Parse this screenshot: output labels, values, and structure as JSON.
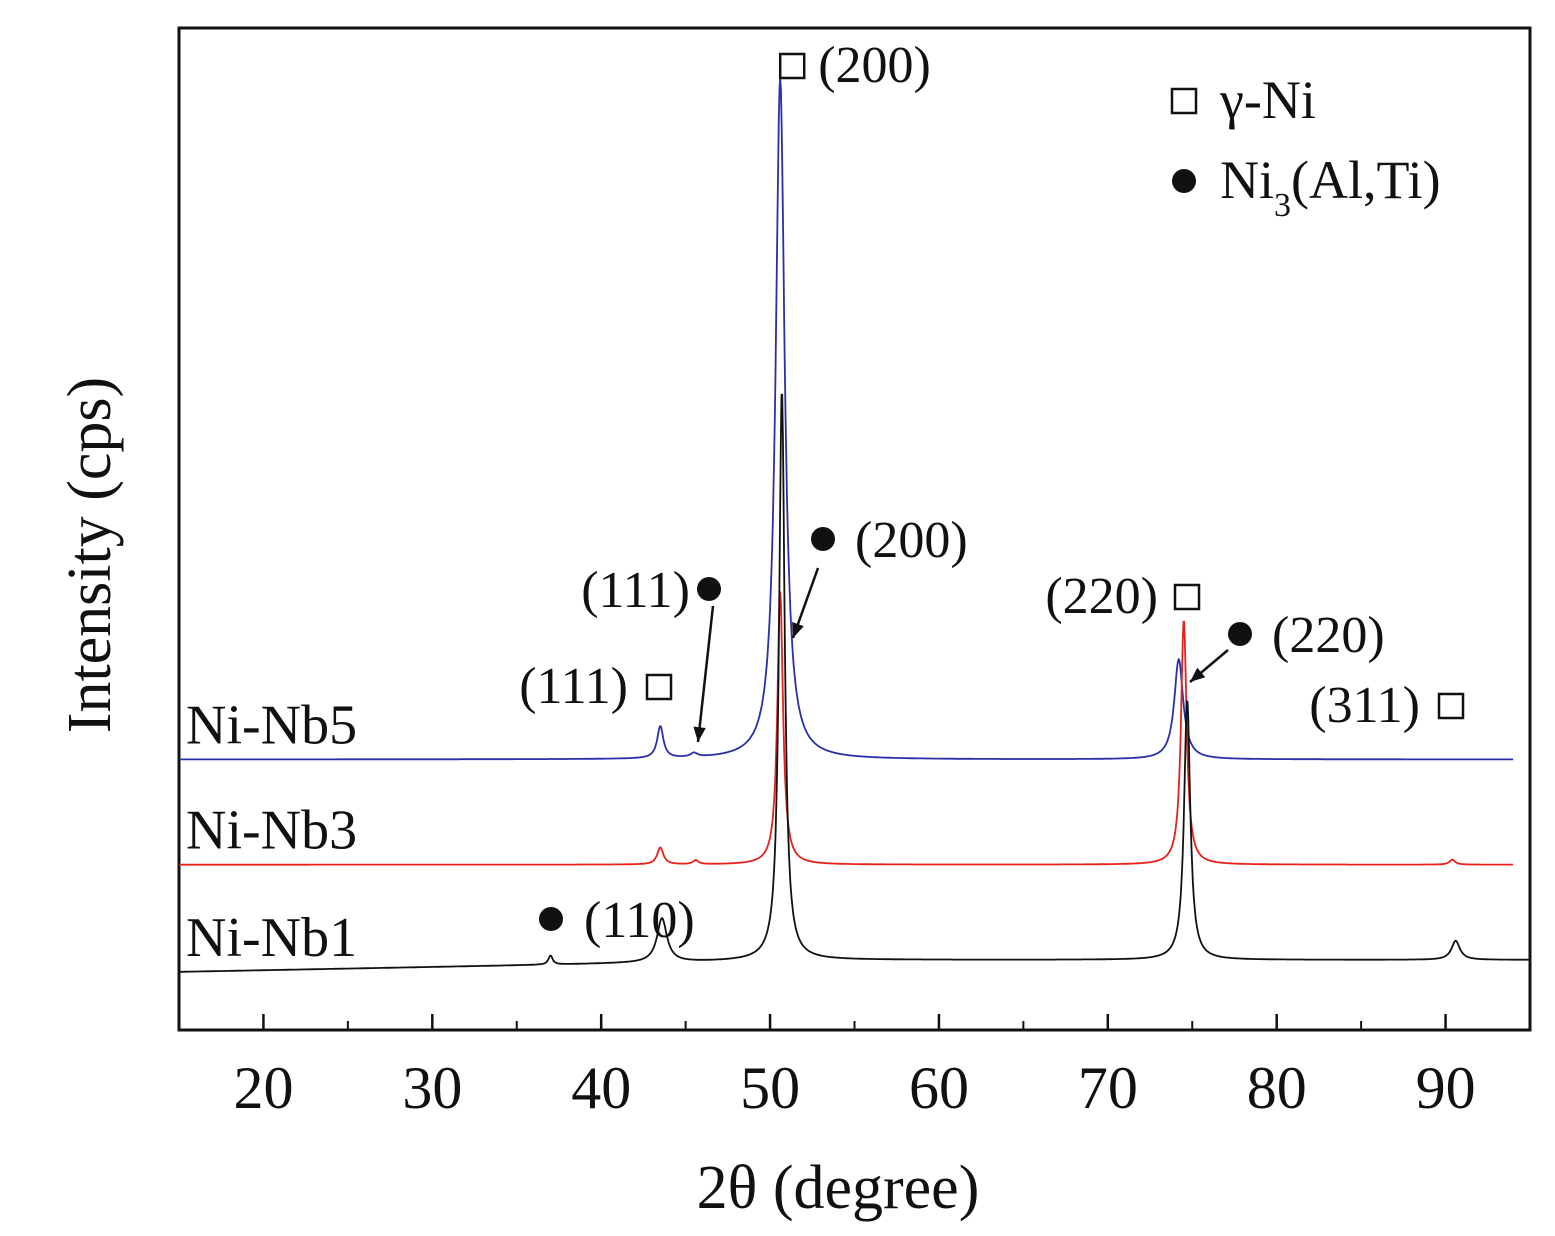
{
  "chart_data": {
    "type": "line",
    "title": "",
    "xlabel": "2θ (degree)",
    "ylabel": "Intensity (cps)",
    "xlim": [
      15,
      95
    ],
    "ylim": [
      0,
      100
    ],
    "x_ticks": [
      20,
      30,
      40,
      50,
      60,
      70,
      80,
      90
    ],
    "y_ticks_shown": false,
    "grid": false,
    "legend_position": "top-right",
    "legend": [
      {
        "symbol": "open-square",
        "label": "γ-Ni"
      },
      {
        "symbol": "filled-circle",
        "label_main": "Ni",
        "label_sub": "3",
        "label_tail": "(Al,Ti)"
      }
    ],
    "series": [
      {
        "name": "Ni-Nb5",
        "color": "#2b2fa8",
        "x_range": [
          15,
          94
        ],
        "baseline": 27,
        "peaks": [
          {
            "x": 43.5,
            "height": 3.2,
            "width": 0.22
          },
          {
            "x": 45.5,
            "height": 0.4,
            "width": 0.25
          },
          {
            "x": 50.6,
            "height": 68.0,
            "width": 0.32
          },
          {
            "x": 74.2,
            "height": 10.0,
            "width": 0.32
          }
        ]
      },
      {
        "name": "Ni-Nb3",
        "color": "#e8211b",
        "x_range": [
          15,
          94
        ],
        "baseline": 16.5,
        "peaks": [
          {
            "x": 43.5,
            "height": 1.7,
            "width": 0.22
          },
          {
            "x": 45.6,
            "height": 0.4,
            "width": 0.2
          },
          {
            "x": 50.6,
            "height": 27.2,
            "width": 0.2
          },
          {
            "x": 74.5,
            "height": 24.5,
            "width": 0.2
          },
          {
            "x": 90.4,
            "height": 0.5,
            "width": 0.2
          }
        ]
      },
      {
        "name": "Ni-Nb1",
        "color": "#111111",
        "x_range": [
          15,
          95
        ],
        "baseline_start": 5.8,
        "baseline_end": 7.0,
        "peaks": [
          {
            "x": 37.0,
            "height": 0.9,
            "width": 0.15
          },
          {
            "x": 43.6,
            "height": 4.4,
            "width": 0.35
          },
          {
            "x": 50.7,
            "height": 57.0,
            "width": 0.2
          },
          {
            "x": 74.7,
            "height": 26.0,
            "width": 0.22
          },
          {
            "x": 90.6,
            "height": 1.9,
            "width": 0.3
          }
        ]
      }
    ],
    "annotations": [
      {
        "id": "nb5-200-gamma",
        "text": "(200)",
        "symbol": "open-square",
        "x": 50.6,
        "y": 96
      },
      {
        "id": "nb5-111-gamma",
        "text": "(111)",
        "symbol": "open-square",
        "x": 43.5,
        "y": 34
      },
      {
        "id": "nb5-111-gp",
        "text": "(111)",
        "symbol": "filled-circle",
        "x": 45.5,
        "y": 43.5
      },
      {
        "id": "nb5-200-gp",
        "text": "(200)",
        "symbol": "filled-circle",
        "x": 53.0,
        "y": 48.5
      },
      {
        "id": "nb5-220-gamma",
        "text": "(220)",
        "symbol": "open-square",
        "x": 74.5,
        "y": 43
      },
      {
        "id": "nb5-220-gp",
        "text": "(220)",
        "symbol": "filled-circle",
        "x": 77.8,
        "y": 39.5
      },
      {
        "id": "nb5-311-gamma",
        "text": "(311)",
        "symbol": "open-square",
        "x": 90.0,
        "y": 32.5
      },
      {
        "id": "nb1-110-gp",
        "text": "(110)",
        "symbol": "filled-circle",
        "x": 37.0,
        "y": 11
      }
    ]
  }
}
